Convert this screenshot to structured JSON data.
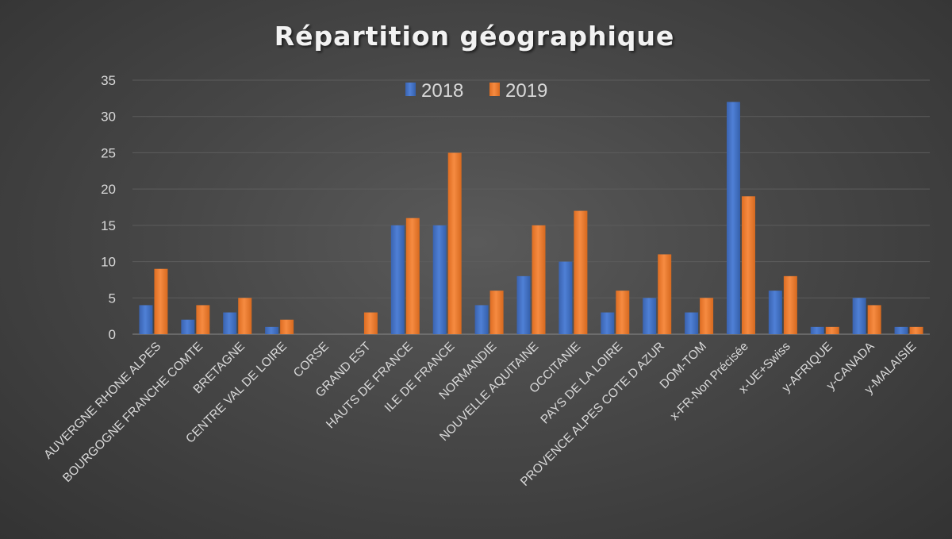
{
  "chart_data": {
    "type": "bar",
    "title": "Répartition géographique",
    "xlabel": "",
    "ylabel": "",
    "ylim": [
      0,
      35
    ],
    "yticks": [
      0,
      5,
      10,
      15,
      20,
      25,
      30,
      35
    ],
    "grid": true,
    "legend_position": "top-center",
    "categories": [
      "AUVERGNE RHONE ALPES",
      "BOURGOGNE FRANCHE COMTE",
      "BRETAGNE",
      "CENTRE VAL DE LOIRE",
      "CORSE",
      "GRAND EST",
      "HAUTS DE FRANCE",
      "ILE DE FRANCE",
      "NORMANDIE",
      "NOUVELLE AQUITAINE",
      "OCCITANIE",
      "PAYS DE LA LOIRE",
      "PROVENCE ALPES COTE D AZUR",
      "DOM-TOM",
      "x-FR-Non Précisée",
      "x-UE+Swiss",
      "y-AFRIQUE",
      "y-CANADA",
      "y-MALAISIE"
    ],
    "series": [
      {
        "name": "2018",
        "color": "#4472c4",
        "values": [
          4,
          2,
          3,
          1,
          0,
          0,
          15,
          15,
          4,
          8,
          10,
          3,
          5,
          3,
          32,
          6,
          1,
          5,
          1
        ]
      },
      {
        "name": "2019",
        "color": "#ed7d31",
        "values": [
          9,
          4,
          5,
          2,
          0,
          3,
          16,
          25,
          6,
          15,
          17,
          6,
          11,
          5,
          19,
          8,
          1,
          4,
          1
        ]
      }
    ]
  }
}
